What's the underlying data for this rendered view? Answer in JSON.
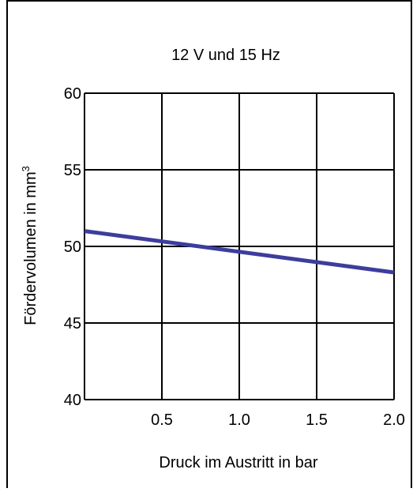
{
  "chart_data": {
    "type": "line",
    "title": "12 V und 15 Hz",
    "xlabel": "Druck im Austritt in bar",
    "ylabel": "Fördervolumen in  mm",
    "ylabel_superscript": "3",
    "xlim": [
      0,
      2.0
    ],
    "ylim": [
      40,
      60
    ],
    "x_ticks": [
      "0.5",
      "1.0",
      "1.5",
      "2.0"
    ],
    "y_ticks": [
      "40",
      "45",
      "50",
      "55",
      "60"
    ],
    "grid": true,
    "series": [
      {
        "x": [
          0,
          2.0
        ],
        "y": [
          51.0,
          48.3
        ],
        "color": "#3d3d9e"
      }
    ]
  }
}
